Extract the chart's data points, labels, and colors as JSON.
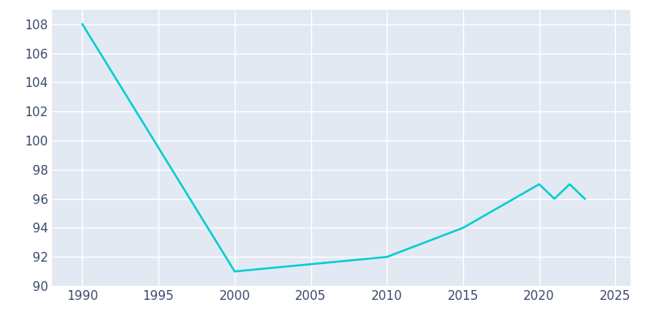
{
  "years": [
    1990,
    2000,
    2005,
    2010,
    2015,
    2020,
    2021,
    2022,
    2023
  ],
  "population": [
    108,
    91,
    91.5,
    92,
    94,
    97,
    96,
    97,
    96
  ],
  "line_color": "#00CED1",
  "plot_bg_color": "#e3e9f3",
  "fig_bg_color": "#ffffff",
  "grid_color": "#ffffff",
  "tick_color": "#3b4a6b",
  "xlim": [
    1988,
    2026
  ],
  "ylim": [
    90,
    109
  ],
  "xticks": [
    1990,
    1995,
    2000,
    2005,
    2010,
    2015,
    2020,
    2025
  ],
  "yticks": [
    90,
    92,
    94,
    96,
    98,
    100,
    102,
    104,
    106,
    108
  ],
  "linewidth": 1.8,
  "tick_fontsize": 11
}
